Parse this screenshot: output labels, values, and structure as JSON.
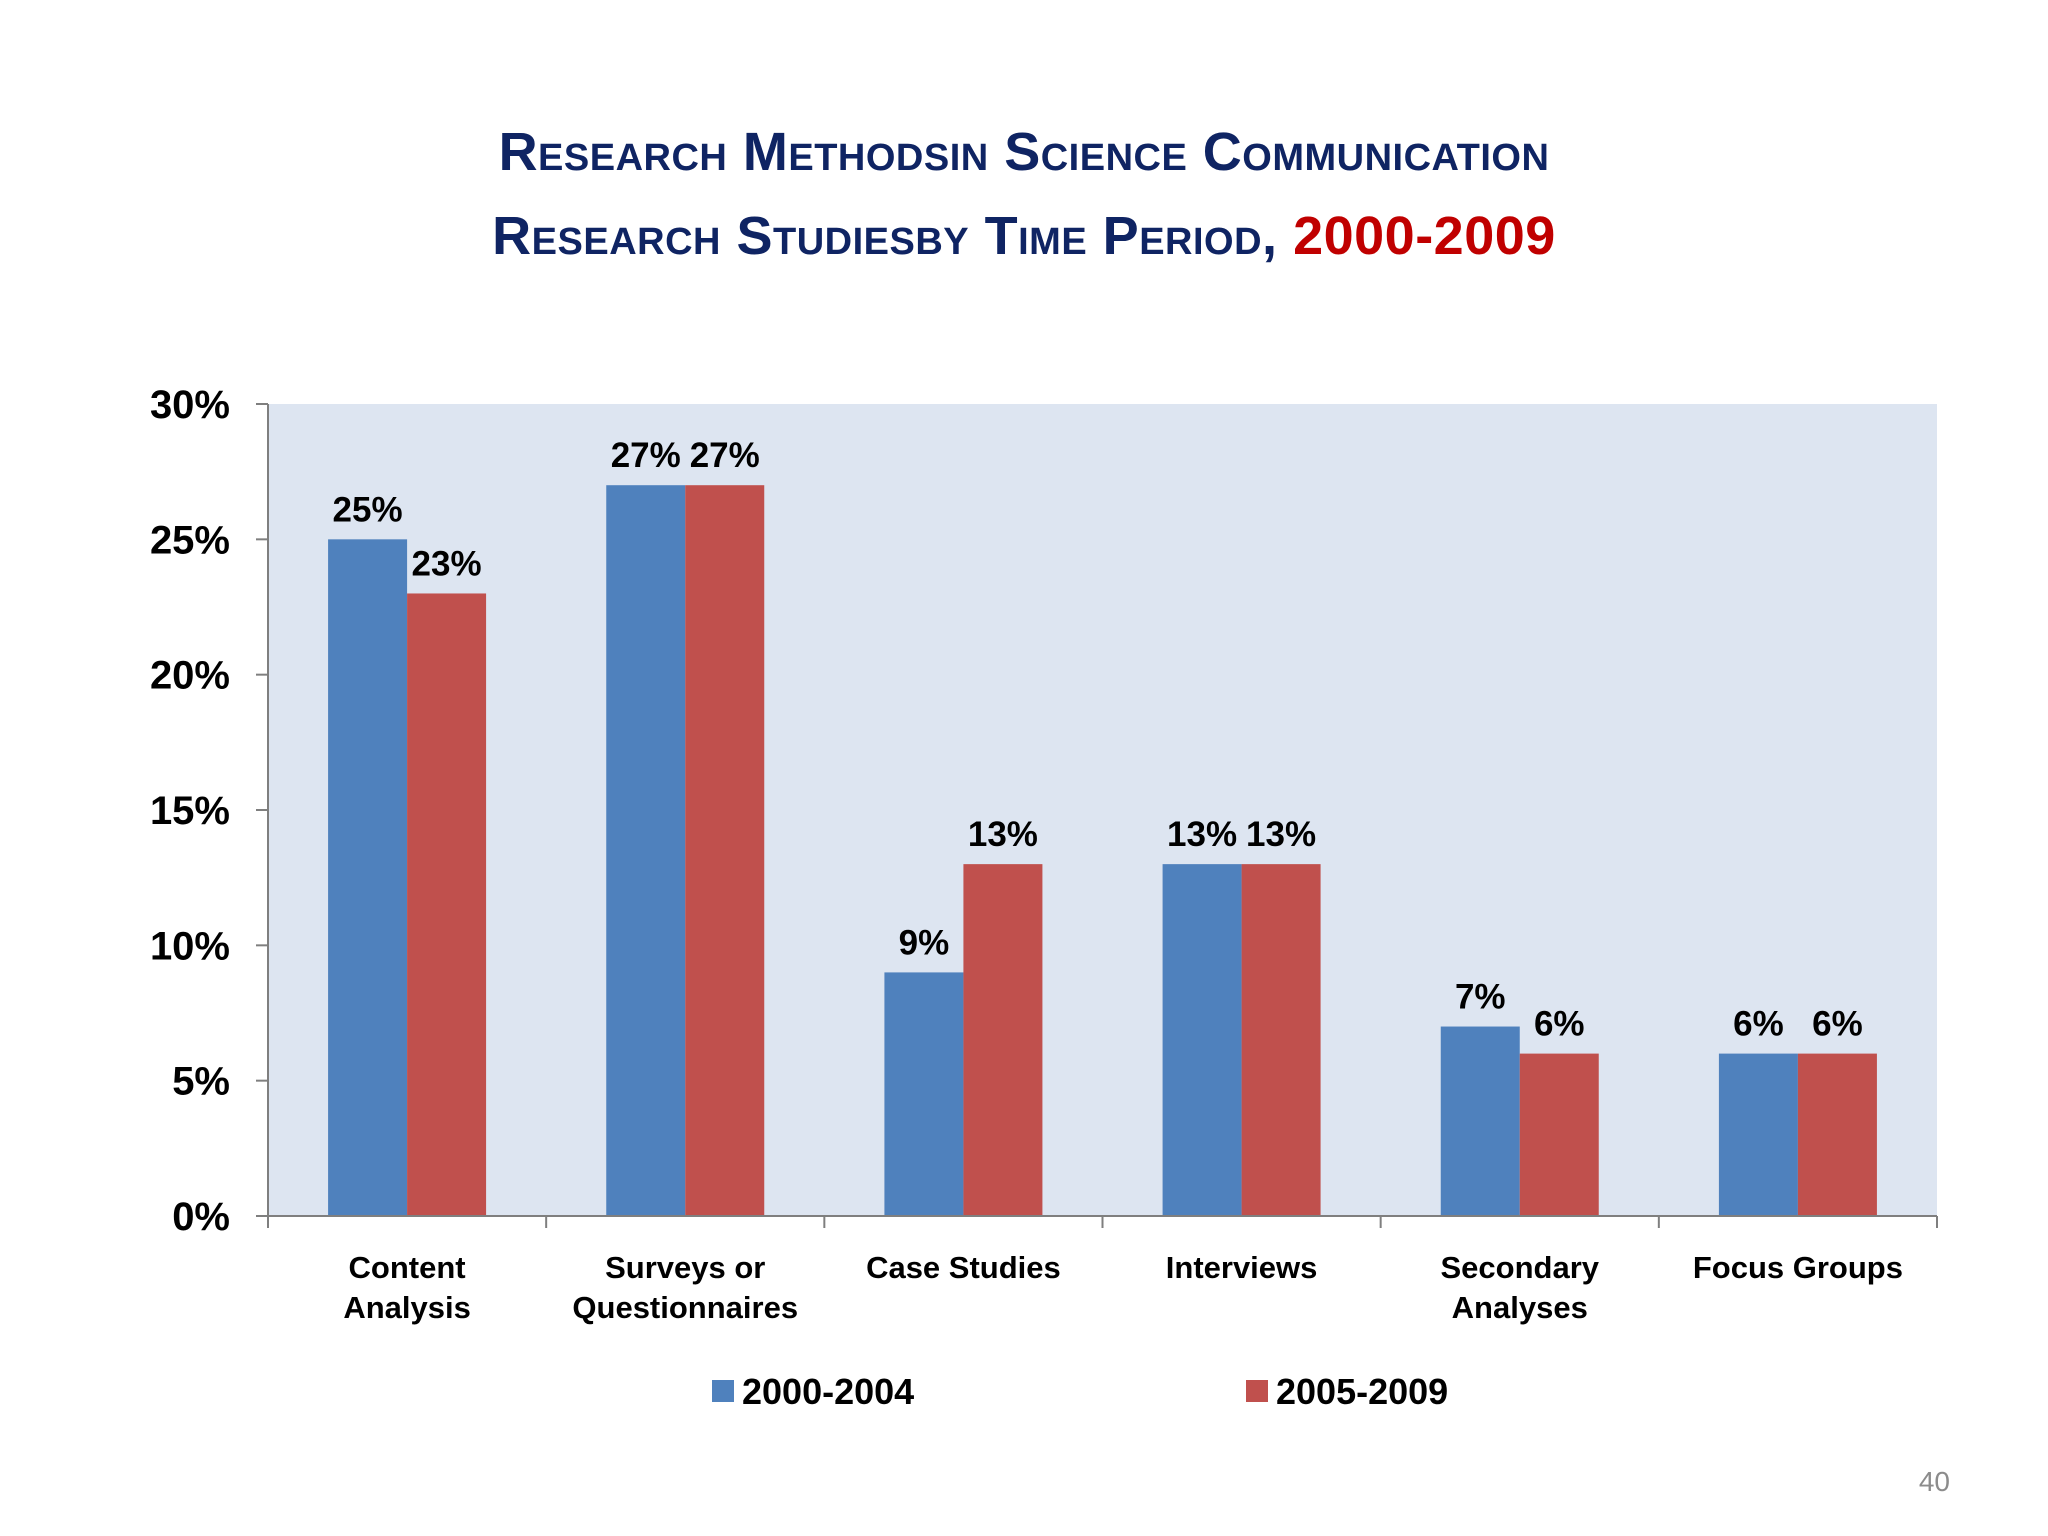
{
  "title": {
    "line1": "Research Methodsin Science Communication",
    "line2_main": "Research Studiesby Time Period, ",
    "line2_accent": "2000-2009"
  },
  "page_number": "40",
  "colors": {
    "title": "#0f2463",
    "accent": "#c00000",
    "plot_background": "#dde5f1",
    "series_1": "#4f81bd",
    "series_2": "#c0504d"
  },
  "chart_data": {
    "type": "bar",
    "title": "Research Methodsin Science Communication Research Studiesby Time Period, 2000-2009",
    "categories": [
      [
        "Content",
        "Analysis"
      ],
      [
        "Surveys or",
        "Questionnaires"
      ],
      [
        "Case Studies"
      ],
      [
        "Interviews"
      ],
      [
        "Secondary",
        "Analyses"
      ],
      [
        "Focus Groups"
      ]
    ],
    "series": [
      {
        "name": "2000-2004",
        "color": "#4f81bd",
        "values": [
          25,
          27,
          9,
          13,
          7,
          6
        ]
      },
      {
        "name": "2005-2009",
        "color": "#c0504d",
        "values": [
          23,
          27,
          13,
          13,
          6,
          6
        ]
      }
    ],
    "value_suffix": "%",
    "ylim": [
      0,
      30
    ],
    "yticks": [
      0,
      5,
      10,
      15,
      20,
      25,
      30
    ],
    "ytick_labels": [
      "0%",
      "5%",
      "10%",
      "15%",
      "20%",
      "25%",
      "30%"
    ],
    "xlabel": "",
    "ylabel": "",
    "grid": false,
    "legend_position": "bottom"
  }
}
